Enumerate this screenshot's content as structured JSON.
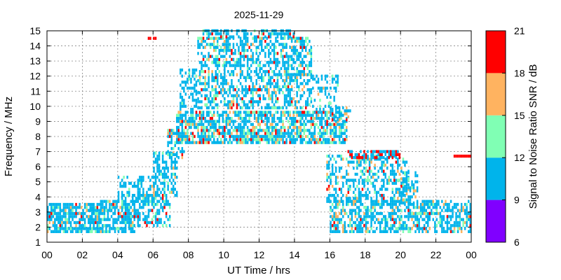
{
  "chart_data": {
    "type": "heatmap",
    "title": "2025-11-29",
    "xlabel": "UT Time / hrs",
    "ylabel": "Frequency / MHz",
    "colorbar_label": "Signal to Noise Ratio SNR / dB",
    "xlim": [
      0,
      24
    ],
    "ylim": [
      1,
      15
    ],
    "x_ticks": [
      "00",
      "02",
      "04",
      "06",
      "08",
      "10",
      "12",
      "14",
      "16",
      "18",
      "20",
      "22",
      "00"
    ],
    "y_ticks": [
      "1",
      "2",
      "3",
      "4",
      "5",
      "6",
      "7",
      "8",
      "9",
      "10",
      "11",
      "12",
      "13",
      "14",
      "15"
    ],
    "grid": true,
    "colorbar": {
      "ticks": [
        "6",
        "9",
        "12",
        "15",
        "18",
        "21"
      ],
      "bands": [
        {
          "from": 6,
          "to": 9,
          "color": "#8000ff"
        },
        {
          "from": 9,
          "to": 12,
          "color": "#00b4eb"
        },
        {
          "from": 12,
          "to": 15,
          "color": "#80ffb4"
        },
        {
          "from": 15,
          "to": 18,
          "color": "#ffb360"
        },
        {
          "from": 18,
          "to": 21,
          "color": "#ff0000"
        }
      ]
    },
    "snr_regions": [
      {
        "t0": 0.0,
        "t1": 3.0,
        "f0": 1.6,
        "f1": 3.6,
        "density": 0.78,
        "snr": [
          11,
          13,
          15,
          19
        ],
        "p": [
          0.78,
          0.12,
          0.07,
          0.03
        ]
      },
      {
        "t0": 3.0,
        "t1": 5.0,
        "f0": 1.6,
        "f1": 3.8,
        "density": 0.72,
        "snr": [
          11,
          13,
          15,
          19
        ],
        "p": [
          0.82,
          0.1,
          0.05,
          0.03
        ]
      },
      {
        "t0": 4.0,
        "t1": 6.2,
        "f0": 3.6,
        "f1": 5.4,
        "density": 0.45,
        "snr": [
          11,
          13,
          15
        ],
        "p": [
          0.9,
          0.07,
          0.03
        ]
      },
      {
        "t0": 5.0,
        "t1": 7.0,
        "f0": 2.0,
        "f1": 4.2,
        "density": 0.55,
        "snr": [
          11,
          13,
          19
        ],
        "p": [
          0.85,
          0.1,
          0.05
        ]
      },
      {
        "t0": 6.0,
        "t1": 7.4,
        "f0": 4.0,
        "f1": 7.0,
        "density": 0.5,
        "snr": [
          11,
          13,
          15
        ],
        "p": [
          0.85,
          0.1,
          0.05
        ]
      },
      {
        "t0": 6.8,
        "t1": 7.8,
        "f0": 6.5,
        "f1": 8.5,
        "density": 0.55,
        "snr": [
          11,
          13,
          15,
          19
        ],
        "p": [
          0.75,
          0.12,
          0.08,
          0.05
        ]
      },
      {
        "t0": 7.5,
        "t1": 8.5,
        "f0": 8.5,
        "f1": 12.5,
        "density": 0.4,
        "snr": [
          11,
          13,
          15
        ],
        "p": [
          0.85,
          0.1,
          0.05
        ]
      },
      {
        "t0": 8.5,
        "t1": 15.0,
        "f0": 9.8,
        "f1": 14.6,
        "density": 0.55,
        "snr": [
          11,
          13,
          15,
          19
        ],
        "p": [
          0.72,
          0.14,
          0.08,
          0.06
        ]
      },
      {
        "t0": 8.8,
        "t1": 14.0,
        "f0": 14.5,
        "f1": 15.0,
        "density": 0.5,
        "snr": [
          11,
          13,
          19
        ],
        "p": [
          0.85,
          0.1,
          0.05
        ]
      },
      {
        "t0": 7.3,
        "t1": 17.0,
        "f0": 7.5,
        "f1": 9.6,
        "density": 0.7,
        "snr": [
          11,
          13,
          15,
          19
        ],
        "p": [
          0.62,
          0.18,
          0.12,
          0.08
        ]
      },
      {
        "t0": 15.0,
        "t1": 16.5,
        "f0": 9.5,
        "f1": 12.0,
        "density": 0.35,
        "snr": [
          11,
          13,
          15
        ],
        "p": [
          0.8,
          0.12,
          0.08
        ]
      },
      {
        "t0": 16.0,
        "t1": 17.2,
        "f0": 9.0,
        "f1": 10.0,
        "density": 0.45,
        "snr": [
          11,
          15,
          19
        ],
        "p": [
          0.7,
          0.2,
          0.1
        ]
      },
      {
        "t0": 15.8,
        "t1": 20.5,
        "f0": 3.6,
        "f1": 6.8,
        "density": 0.45,
        "snr": [
          11,
          13,
          15,
          19
        ],
        "p": [
          0.72,
          0.15,
          0.08,
          0.05
        ]
      },
      {
        "t0": 17.0,
        "t1": 20.0,
        "f0": 6.5,
        "f1": 7.0,
        "density": 0.7,
        "snr": [
          11,
          19
        ],
        "p": [
          0.5,
          0.5
        ]
      },
      {
        "t0": 16.0,
        "t1": 24.0,
        "f0": 1.6,
        "f1": 3.8,
        "density": 0.62,
        "snr": [
          11,
          13,
          15,
          19
        ],
        "p": [
          0.78,
          0.12,
          0.07,
          0.03
        ]
      },
      {
        "t0": 20.0,
        "t1": 21.0,
        "f0": 3.5,
        "f1": 5.6,
        "density": 0.5,
        "snr": [
          11,
          13,
          15
        ],
        "p": [
          0.8,
          0.12,
          0.08
        ]
      },
      {
        "t0": 5.7,
        "t1": 6.2,
        "f0": 14.4,
        "f1": 14.6,
        "density": 0.9,
        "snr": [
          19
        ],
        "p": [
          1
        ]
      },
      {
        "t0": 23.0,
        "t1": 24.0,
        "f0": 6.6,
        "f1": 6.8,
        "density": 0.8,
        "snr": [
          19
        ],
        "p": [
          1
        ]
      }
    ]
  }
}
